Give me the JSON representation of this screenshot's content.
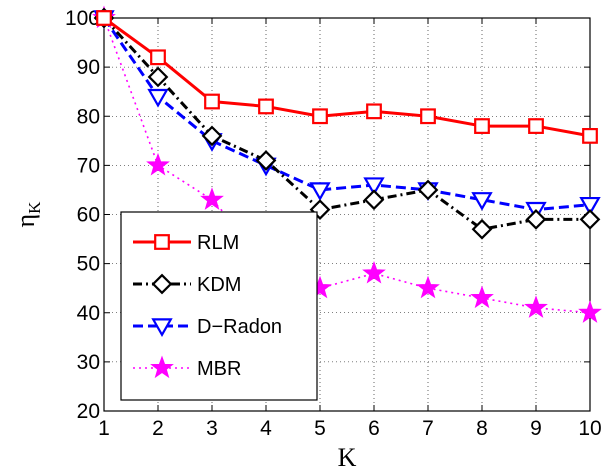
{
  "chart_data": {
    "type": "line",
    "x": [
      1,
      2,
      3,
      4,
      5,
      6,
      7,
      8,
      9,
      10
    ],
    "xlabel": "K",
    "ylabel": "η",
    "ylabel_subscript": "K",
    "xlim": [
      1,
      10
    ],
    "ylim": [
      20,
      100
    ],
    "xticks": [
      "1",
      "2",
      "3",
      "4",
      "5",
      "6",
      "7",
      "8",
      "9",
      "10"
    ],
    "yticks": [
      "20",
      "30",
      "40",
      "50",
      "60",
      "70",
      "80",
      "90",
      "100"
    ],
    "grid": true,
    "legend_position": "bottom-left",
    "series": [
      {
        "name": "RLM",
        "color": "#ff0000",
        "marker": "square",
        "line": "solid",
        "values": [
          100,
          92,
          83,
          82,
          80,
          81,
          80,
          78,
          78,
          76
        ]
      },
      {
        "name": "KDM",
        "color": "#000000",
        "marker": "diamond",
        "line": "dash-dot",
        "values": [
          100,
          88,
          76,
          71,
          61,
          63,
          65,
          57,
          59,
          59
        ]
      },
      {
        "name": "D−Radon",
        "color": "#0000ff",
        "marker": "triangle-down",
        "line": "dashed",
        "values": [
          100,
          84,
          75,
          70,
          65,
          66,
          65,
          63,
          61,
          62
        ]
      },
      {
        "name": "MBR",
        "color": "#ff00ff",
        "marker": "star",
        "line": "dotted",
        "values": [
          100,
          70,
          63,
          51,
          45,
          48,
          45,
          43,
          41,
          40
        ]
      }
    ]
  }
}
